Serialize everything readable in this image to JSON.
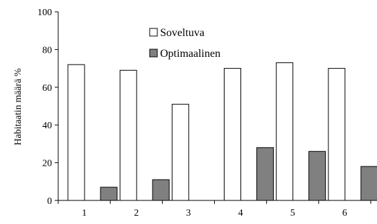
{
  "chart_data": {
    "type": "bar",
    "categories": [
      "1",
      "2",
      "3",
      "4",
      "5",
      "6"
    ],
    "series": [
      {
        "name": "Soveltuva",
        "values": [
          72,
          69,
          51,
          70,
          73,
          70
        ],
        "color": "#ffffff"
      },
      {
        "name": "Optimaalinen",
        "values": [
          7,
          11,
          0,
          28,
          26,
          18
        ],
        "color": "#808080"
      }
    ],
    "ylabel": "Habitaatin määrä %",
    "xlabel": "",
    "ylim": [
      0,
      100
    ],
    "yticks": [
      0,
      20,
      40,
      60,
      80,
      100
    ],
    "legend_position": "top-center"
  }
}
